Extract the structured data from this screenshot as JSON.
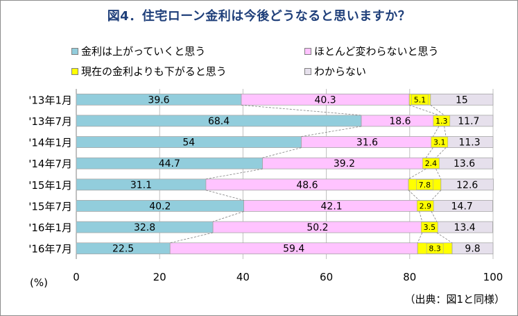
{
  "title": "図4．住宅ローン金利は今後どうなると思いますか？",
  "unit_label": "(%)",
  "source_note": "（出典：図1と同様）",
  "chart_data": {
    "type": "bar",
    "orientation": "horizontal",
    "stacked": true,
    "categories": [
      "'13年1月",
      "'13年7月",
      "'14年1月",
      "'14年7月",
      "'15年1月",
      "'15年7月",
      "'16年1月",
      "'16年7月"
    ],
    "series": [
      {
        "name": "金利は上がっていくと思う",
        "color": "#92CDDC",
        "values": [
          39.6,
          68.4,
          54,
          44.7,
          31.1,
          40.2,
          32.8,
          22.5
        ]
      },
      {
        "name": "ほとんど変わらないと思う",
        "color": "#FFC3FF",
        "values": [
          40.3,
          18.6,
          31.6,
          39.2,
          48.6,
          42.1,
          50.2,
          59.4
        ]
      },
      {
        "name": "現在の金利よりも下がると思う",
        "color": "#FFFF00",
        "values": [
          5.1,
          1.3,
          3.1,
          2.4,
          7.8,
          2.9,
          3.5,
          8.3
        ]
      },
      {
        "name": "わからない",
        "color": "#E6E0EC",
        "values": [
          15.0,
          11.7,
          11.3,
          13.6,
          12.6,
          14.7,
          13.4,
          9.8
        ]
      }
    ],
    "xlim": [
      0,
      100
    ],
    "xticks": [
      0,
      20,
      40,
      60,
      80,
      100
    ],
    "grid": "vertical",
    "legend_position": "top",
    "series_lines": true
  }
}
